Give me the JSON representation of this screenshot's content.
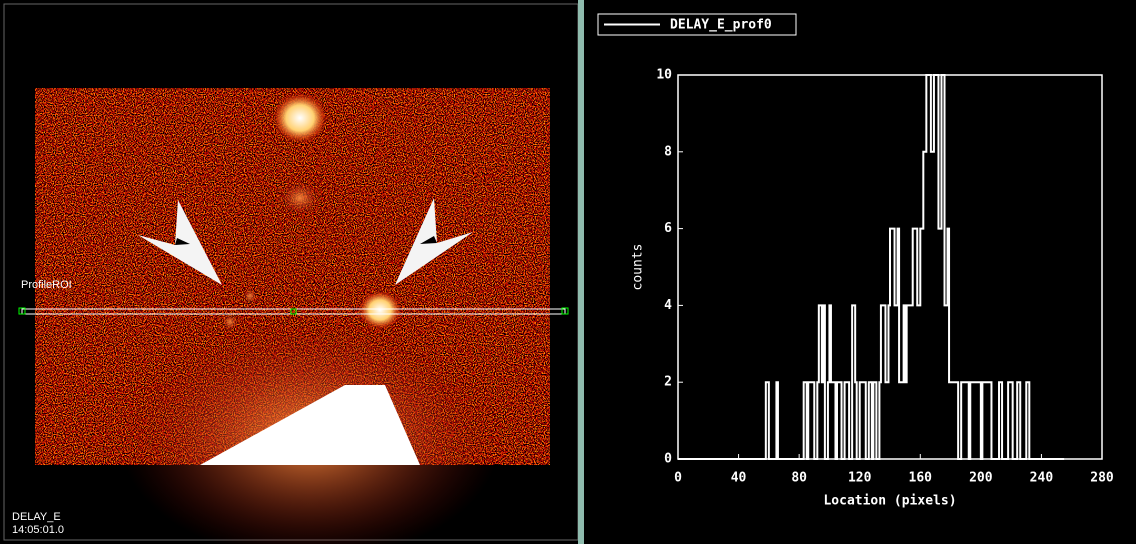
{
  "image_panel": {
    "roi_label": "ProfileROI",
    "series_label": "DELAY_E",
    "timestamp": "14:05:01.0"
  },
  "chart_data": {
    "type": "step",
    "xlabel": "Location (pixels)",
    "ylabel": "counts",
    "xlim": [
      0,
      280
    ],
    "xticks": [
      0,
      40,
      80,
      120,
      160,
      200,
      240,
      280
    ],
    "ylim": [
      0,
      10
    ],
    "yticks": [
      0,
      2,
      4,
      6,
      8,
      10
    ],
    "series": [
      {
        "name": "DELAY_E_prof0",
        "color": "#ffffff",
        "x": [
          0,
          58,
          60,
          65,
          66,
          83,
          85,
          86,
          90,
          92,
          93,
          95,
          96,
          97,
          99,
          100,
          101,
          104,
          105,
          108,
          110,
          113,
          115,
          117,
          118,
          120,
          124,
          126,
          128,
          129,
          131,
          133,
          134,
          137,
          139,
          140,
          143,
          145,
          146,
          149,
          150,
          151,
          155,
          158,
          160,
          162,
          164,
          167,
          169,
          172,
          174,
          176,
          178,
          179,
          185,
          187,
          192,
          193,
          200,
          201,
          207,
          212,
          214,
          218,
          221,
          224,
          226,
          230,
          232,
          255
        ],
        "values": [
          0,
          2,
          0,
          2,
          0,
          2,
          0,
          2,
          0,
          2,
          4,
          2,
          4,
          0,
          2,
          4,
          2,
          0,
          2,
          0,
          2,
          0,
          4,
          2,
          0,
          2,
          0,
          2,
          0,
          2,
          0,
          2,
          4,
          2,
          4,
          6,
          4,
          6,
          2,
          4,
          2,
          4,
          6,
          4,
          6,
          8,
          10,
          8,
          10,
          6,
          10,
          4,
          6,
          2,
          0,
          2,
          0,
          2,
          0,
          2,
          0,
          2,
          0,
          2,
          0,
          2,
          0,
          2,
          0,
          0
        ]
      }
    ]
  }
}
